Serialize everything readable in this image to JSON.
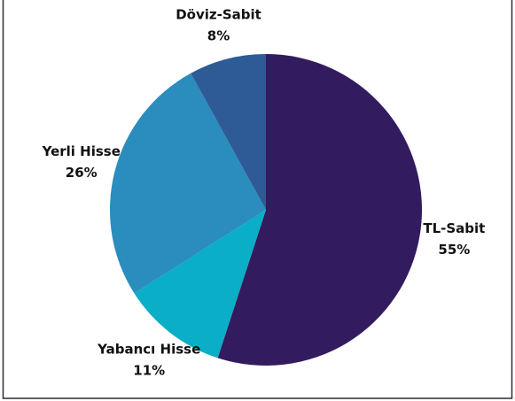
{
  "chart_data": {
    "type": "pie",
    "categories": [
      "TL-Sabit",
      "Yabancı Hisse",
      "Yerli Hisse",
      "Döviz-Sabit"
    ],
    "values": [
      55,
      11,
      26,
      8
    ],
    "value_labels": [
      "55%",
      "11%",
      "26%",
      "8%"
    ],
    "colors": [
      "#321c5f",
      "#0aaec6",
      "#2b8cbe",
      "#2e5b96"
    ]
  }
}
